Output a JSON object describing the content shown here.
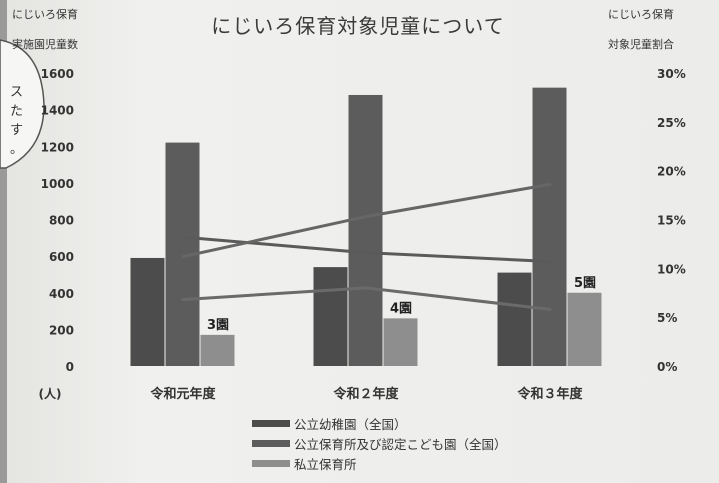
{
  "chart_data": {
    "type": "bar",
    "title": "にじいろ保育対象児童について",
    "categories": [
      "令和元年度",
      "令和２年度",
      "令和３年度"
    ],
    "y_left": {
      "label_lines": [
        "にじいろ保育",
        "実施園児童数"
      ],
      "unit": "(人)",
      "ticks": [
        0,
        200,
        400,
        600,
        800,
        1000,
        1200,
        1400,
        1600
      ],
      "range": [
        0,
        1600
      ]
    },
    "y_right": {
      "label_lines": [
        "にじいろ保育",
        "対象児童割合"
      ],
      "ticks": [
        "0%",
        "5%",
        "10%",
        "15%",
        "20%",
        "25%",
        "30%"
      ],
      "range": [
        0,
        30
      ]
    },
    "series": [
      {
        "name": "公立幼稚園（全国）",
        "values": [
          590,
          540,
          510
        ],
        "color": "#4c4c4c"
      },
      {
        "name": "公立保育所及び認定こども園（全国）",
        "values": [
          1220,
          1480,
          1520
        ],
        "color": "#5c5c5c"
      },
      {
        "name": "私立保育所",
        "values": [
          170,
          260,
          400
        ],
        "color": "#8e8e8e"
      }
    ],
    "lines": [
      {
        "values": [
          13.2,
          11.6,
          10.7
        ],
        "color": "#5a5a5a"
      },
      {
        "values": [
          11.2,
          15.3,
          18.6
        ],
        "color": "#666666"
      },
      {
        "values": [
          6.8,
          8.0,
          5.8
        ],
        "color": "#6a6a6a"
      }
    ],
    "data_labels": [
      "3園",
      "4園",
      "5園"
    ],
    "legend_position": "bottom",
    "grid": false
  },
  "margin_note": [
    "ス",
    "た",
    "す",
    "。"
  ]
}
